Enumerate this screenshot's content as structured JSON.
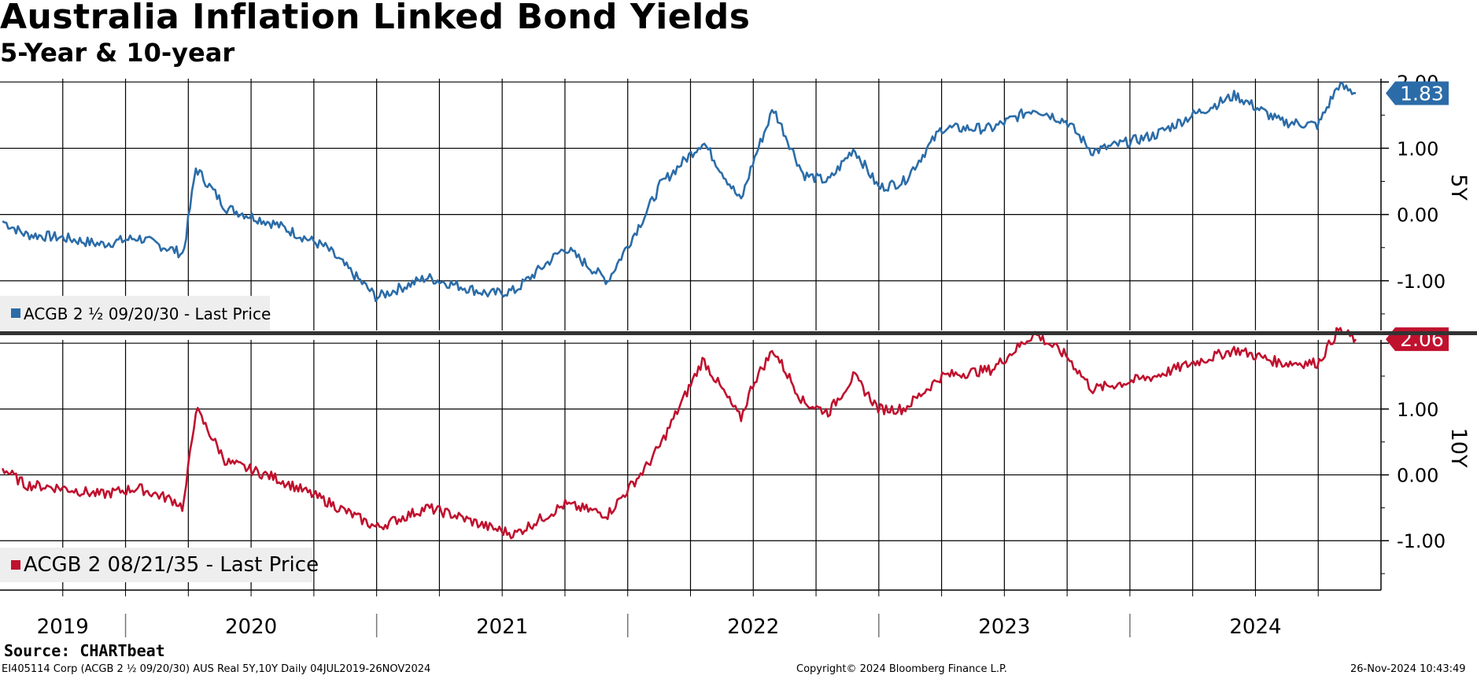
{
  "header": {
    "title": "Australia Inflation Linked Bond Yields",
    "subtitle": "5-Year & 10-year"
  },
  "footer": {
    "source": "Source: CHARTbeat",
    "security": "EI405114 Corp (ACGB 2 ½ 09/20/30) AUS Real 5Y,10Y  Daily 04JUL2019-26NOV2024",
    "copyright": "Copyright© 2024 Bloomberg Finance L.P.",
    "timestamp": "26-Nov-2024 10:43:49"
  },
  "chart_data": [
    {
      "type": "line",
      "panel_label": "5Y",
      "legend": "ACGB 2 ½ 09/20/30 - Last Price",
      "color": "#2b6ca8",
      "last_value_label": "1.83",
      "ylim": [
        -1.75,
        2.05
      ],
      "yticks": [
        "-1.00",
        "0.00",
        "1.00",
        "2.00"
      ],
      "x": [
        2019.51,
        2019.6,
        2019.75,
        2019.9,
        2020.05,
        2020.2,
        2020.23,
        2020.28,
        2020.4,
        2020.6,
        2020.8,
        2021.0,
        2021.2,
        2021.3,
        2021.45,
        2021.55,
        2021.75,
        2021.92,
        2022.07,
        2022.13,
        2022.3,
        2022.45,
        2022.5,
        2022.58,
        2022.7,
        2022.8,
        2022.9,
        2023.0,
        2023.1,
        2023.25,
        2023.45,
        2023.62,
        2023.75,
        2023.85,
        2024.1,
        2024.25,
        2024.42,
        2024.6,
        2024.75,
        2024.83,
        2024.9
      ],
      "y": [
        -0.1,
        -0.3,
        -0.35,
        -0.45,
        -0.35,
        -0.55,
        -0.6,
        0.7,
        0.1,
        -0.15,
        -0.5,
        -1.25,
        -0.95,
        -1.05,
        -1.2,
        -1.15,
        -0.5,
        -1.0,
        0.0,
        0.45,
        1.1,
        0.2,
        0.8,
        1.6,
        0.6,
        0.5,
        1.0,
        0.4,
        0.5,
        1.3,
        1.3,
        1.6,
        1.4,
        0.95,
        1.2,
        1.5,
        1.8,
        1.4,
        1.35,
        1.95,
        1.83
      ]
    },
    {
      "type": "line",
      "panel_label": "10Y",
      "legend": "ACGB 2 08/21/35 - Last Price",
      "color": "#c0112e",
      "last_value_label": "2.06",
      "ylim": [
        -1.75,
        2.05
      ],
      "yticks": [
        "-1.00",
        "0.00",
        "1.00",
        "2.00"
      ],
      "x": [
        2019.51,
        2019.6,
        2019.75,
        2019.9,
        2020.05,
        2020.2,
        2020.23,
        2020.28,
        2020.4,
        2020.6,
        2020.8,
        2021.0,
        2021.2,
        2021.3,
        2021.45,
        2021.55,
        2021.75,
        2021.92,
        2022.07,
        2022.13,
        2022.3,
        2022.45,
        2022.5,
        2022.58,
        2022.7,
        2022.8,
        2022.9,
        2023.0,
        2023.1,
        2023.25,
        2023.45,
        2023.62,
        2023.75,
        2023.85,
        2024.1,
        2024.25,
        2024.42,
        2024.6,
        2024.75,
        2024.83,
        2024.9
      ],
      "y": [
        0.1,
        -0.15,
        -0.2,
        -0.3,
        -0.2,
        -0.4,
        -0.5,
        1.0,
        0.2,
        -0.05,
        -0.4,
        -0.8,
        -0.5,
        -0.6,
        -0.8,
        -0.9,
        -0.45,
        -0.6,
        0.1,
        0.45,
        1.75,
        0.85,
        1.4,
        1.9,
        1.1,
        0.95,
        1.5,
        1.0,
        1.0,
        1.5,
        1.6,
        2.15,
        1.8,
        1.3,
        1.5,
        1.7,
        1.9,
        1.7,
        1.7,
        2.2,
        2.06
      ]
    }
  ],
  "x_axis": {
    "year_labels": [
      "2019",
      "2020",
      "2021",
      "2022",
      "2023",
      "2024"
    ],
    "range": [
      2019.5,
      2025.0
    ]
  }
}
